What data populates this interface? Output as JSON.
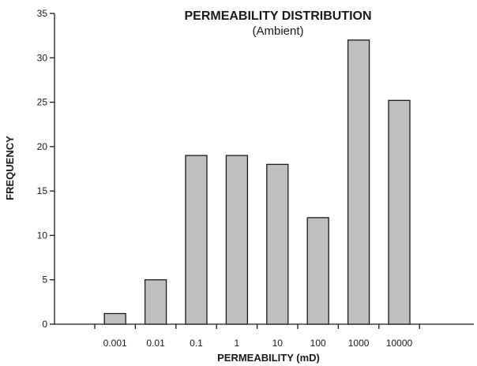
{
  "chart_data": {
    "type": "bar",
    "title": "PERMEABILITY DISTRIBUTION",
    "subtitle": "(Ambient)",
    "xlabel": "PERMEABILITY (mD)",
    "ylabel": "FREQUENCY",
    "categories": [
      "0.001",
      "0.01",
      "0.1",
      "1",
      "10",
      "100",
      "1000",
      "10000"
    ],
    "values": [
      1.2,
      5,
      19,
      19,
      18,
      12,
      32,
      25.2
    ],
    "ylim": [
      0,
      35
    ],
    "yticks": [
      0,
      5,
      10,
      15,
      20,
      25,
      30,
      35
    ],
    "grid": false,
    "legend": "none",
    "colors": {
      "bar_fill": "#bfbfbf",
      "bar_stroke": "#1a1a1a",
      "text": "#1a1a1a"
    }
  }
}
